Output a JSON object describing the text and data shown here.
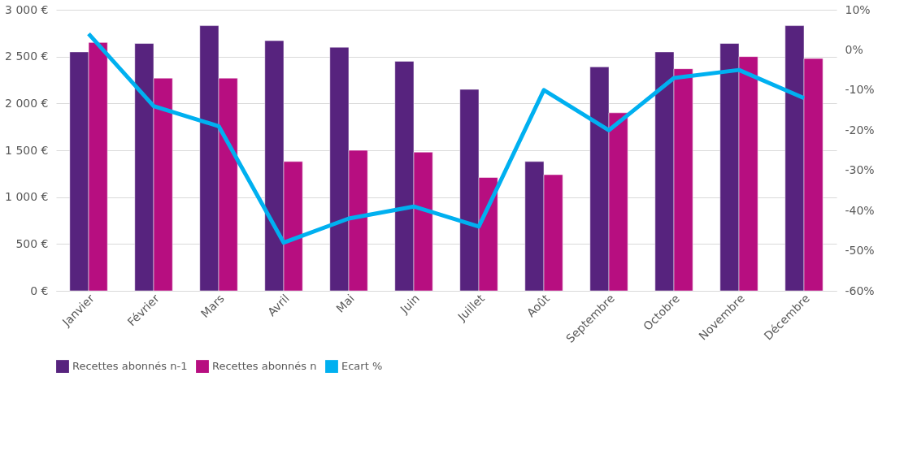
{
  "chart_data": {
    "type": "bar",
    "categories": [
      "Janvier",
      "Février",
      "Mars",
      "Avril",
      "Mai",
      "Juin",
      "Juillet",
      "Août",
      "Septembre",
      "Octobre",
      "Novembre",
      "Décembre"
    ],
    "series": [
      {
        "name": "Recettes abonnés n-1",
        "color": "#57237e",
        "values": [
          2550,
          2640,
          2830,
          2670,
          2600,
          2450,
          2150,
          1380,
          2390,
          2550,
          2640,
          2830
        ]
      },
      {
        "name": "Recettes abonnés n",
        "color": "#b70e80",
        "values": [
          2650,
          2270,
          2270,
          1380,
          1500,
          1480,
          1210,
          1240,
          1900,
          2370,
          2500,
          2480
        ]
      },
      {
        "name": "Ecart %",
        "color": "#00b0f0",
        "type": "line",
        "axis": "y2",
        "values": [
          4,
          -14,
          -19,
          -48,
          -42,
          -39,
          -44,
          -10,
          -20,
          -7,
          -5,
          -12
        ]
      }
    ],
    "ylim": [
      0,
      3000
    ],
    "yticks": [
      {
        "value": 0,
        "label": "0 €"
      },
      {
        "value": 500,
        "label": "500 €"
      },
      {
        "value": 1000,
        "label": "1 000 €"
      },
      {
        "value": 1500,
        "label": "1 500 €"
      },
      {
        "value": 2000,
        "label": "2 000 €"
      },
      {
        "value": 2500,
        "label": "2 500 €"
      },
      {
        "value": 3000,
        "label": "3 000 €"
      }
    ],
    "y2lim": [
      -60,
      10
    ],
    "y2ticks": [
      {
        "value": -60,
        "label": "-60%"
      },
      {
        "value": -50,
        "label": "-50%"
      },
      {
        "value": -40,
        "label": "-40%"
      },
      {
        "value": -30,
        "label": "-30%"
      },
      {
        "value": -20,
        "label": "-20%"
      },
      {
        "value": -10,
        "label": "-10%"
      },
      {
        "value": 0,
        "label": "0%"
      },
      {
        "value": 10,
        "label": "10%"
      }
    ],
    "grid": "y",
    "legend": "bottom",
    "marker": "none",
    "line_style": "solid"
  }
}
